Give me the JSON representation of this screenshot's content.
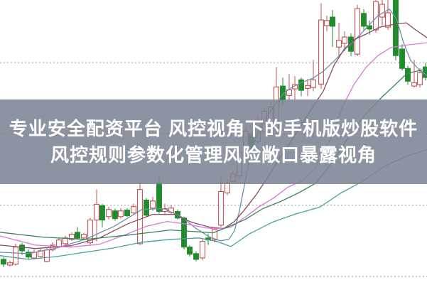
{
  "banner": {
    "line1": "专业安全配资平台 风控视角下的手机版炒股软件",
    "line2": "风控规则参数化管理风险敞口暴露视角",
    "bg_color": "rgba(124,132,147,0.87)",
    "text_color": "#ffffff"
  },
  "chart_data": {
    "type": "candlestick",
    "title": "",
    "legend": "none",
    "axes_visible": false,
    "background": "#ffffff",
    "value_scale": {
      "min": 0,
      "max": 100,
      "note": "normalized price scale; no axis tick labels are visible in the image"
    },
    "gridlines": {
      "orientation": "horizontal",
      "values": [
        78,
        53,
        28,
        3
      ],
      "style": "dotted",
      "color": "#9a9a9a"
    },
    "up_style": {
      "stroke": "#c4504f",
      "fill": "#ffffff",
      "meaning": "rising candle (hollow red)"
    },
    "down_style": {
      "stroke": "#208b2c",
      "fill": "#208b2c",
      "meaning": "falling candle (solid green)"
    },
    "candle_fields": [
      "x",
      "open",
      "close",
      "low",
      "high",
      "direction"
    ],
    "candles": [
      [
        5,
        9,
        7.3,
        6.3,
        9.8,
        "down"
      ],
      [
        14,
        7,
        7.8,
        6.5,
        8.5,
        "up"
      ],
      [
        22,
        7.3,
        13.3,
        6.8,
        14.5,
        "up"
      ],
      [
        31,
        14,
        12,
        10.5,
        14.8,
        "down"
      ],
      [
        40,
        11.5,
        9.8,
        8.8,
        12.5,
        "down"
      ],
      [
        48,
        9.5,
        11.5,
        9,
        12.5,
        "up"
      ],
      [
        57,
        10,
        12,
        9.5,
        12.8,
        "up"
      ],
      [
        66,
        8.3,
        12.3,
        8,
        13,
        "up"
      ],
      [
        74,
        12.3,
        14,
        11.8,
        15,
        "up"
      ],
      [
        83,
        13.5,
        15.8,
        13,
        16.5,
        "up"
      ],
      [
        92,
        14.5,
        16.5,
        14,
        17.3,
        "up"
      ],
      [
        101,
        16,
        17.8,
        15.5,
        18.5,
        "up"
      ],
      [
        109,
        18.5,
        16.5,
        16,
        20.3,
        "down"
      ],
      [
        118,
        16.5,
        17.8,
        16,
        18.3,
        "up"
      ],
      [
        127,
        14.8,
        22.8,
        14,
        23.5,
        "up"
      ],
      [
        136,
        22.8,
        28.3,
        15.3,
        33.5,
        "up"
      ],
      [
        144,
        27.8,
        22.8,
        20.3,
        28.5,
        "down"
      ],
      [
        153,
        24,
        26.5,
        23,
        27.5,
        "up"
      ],
      [
        162,
        26,
        23.3,
        22.5,
        26.8,
        "down"
      ],
      [
        170,
        24,
        26,
        23.3,
        27,
        "up"
      ],
      [
        179,
        26.3,
        24.3,
        23.8,
        27,
        "down"
      ],
      [
        188,
        25.3,
        27.5,
        24.8,
        28.5,
        "up"
      ],
      [
        197,
        14.5,
        33.5,
        14,
        35.8,
        "up"
      ],
      [
        206,
        29.8,
        24.5,
        23.8,
        30.5,
        "down"
      ],
      [
        215,
        27,
        29.5,
        26,
        31,
        "up"
      ],
      [
        224,
        35.8,
        25.8,
        25,
        37.8,
        "down"
      ],
      [
        232,
        25.8,
        26.8,
        24.5,
        28.5,
        "up"
      ],
      [
        241,
        25.5,
        27,
        24.8,
        28,
        "up"
      ],
      [
        250,
        25.8,
        23.5,
        23,
        26.5,
        "down"
      ],
      [
        259,
        23.5,
        13.3,
        12.5,
        24,
        "down"
      ],
      [
        267,
        13.3,
        10.8,
        10,
        14,
        "down"
      ],
      [
        276,
        11,
        9,
        8.3,
        11.8,
        "down"
      ],
      [
        285,
        9.5,
        15.3,
        8.8,
        16,
        "up"
      ],
      [
        293,
        16.5,
        15.8,
        14,
        18,
        "down"
      ],
      [
        302,
        15.8,
        19.5,
        15,
        20.3,
        "up"
      ],
      [
        311,
        21,
        32.8,
        20.3,
        38.5,
        "up"
      ],
      [
        320,
        32.3,
        35.8,
        31.5,
        37,
        "up"
      ],
      [
        328,
        36.3,
        39,
        35.5,
        40,
        "up"
      ],
      [
        337,
        38.3,
        46.5,
        37.5,
        48.5,
        "up"
      ],
      [
        346,
        45.3,
        54,
        44.5,
        55.5,
        "up"
      ],
      [
        354,
        52.8,
        47.8,
        46.5,
        54,
        "down"
      ],
      [
        363,
        50.3,
        57.8,
        49.5,
        59.5,
        "up"
      ],
      [
        372,
        54,
        61,
        53,
        62,
        "up"
      ],
      [
        381,
        56.5,
        62.5,
        55.5,
        64.5,
        "up"
      ],
      [
        389,
        55.3,
        69.5,
        52.8,
        76.5,
        "up"
      ],
      [
        398,
        69.8,
        64.8,
        63,
        72.8,
        "down"
      ],
      [
        407,
        66.5,
        68.5,
        64.5,
        74,
        "up"
      ],
      [
        415,
        68.8,
        70.3,
        65,
        73.3,
        "up"
      ],
      [
        424,
        72,
        68.3,
        66.3,
        72.8,
        "down"
      ],
      [
        433,
        69,
        70,
        66.3,
        72.3,
        "up"
      ],
      [
        441,
        69.3,
        72,
        68,
        79,
        "up"
      ],
      [
        452,
        70.5,
        93,
        68.8,
        98.8,
        "up"
      ],
      [
        460,
        91,
        92.8,
        89,
        94.5,
        "up"
      ],
      [
        468,
        94,
        90.8,
        83.5,
        96.5,
        "down"
      ],
      [
        477,
        83.5,
        85.8,
        79.5,
        92,
        "up"
      ],
      [
        485,
        84.8,
        87,
        82,
        89,
        "up"
      ],
      [
        494,
        87,
        82,
        80.3,
        88.3,
        "down"
      ],
      [
        503,
        81,
        97,
        80.3,
        98.3,
        "up"
      ],
      [
        512,
        95.3,
        90.8,
        89,
        96.8,
        "down"
      ],
      [
        520,
        91,
        89.8,
        87.8,
        92.8,
        "down"
      ],
      [
        529,
        89.5,
        99.5,
        88.5,
        100,
        "up"
      ],
      [
        538,
        94,
        98.5,
        91,
        100,
        "up"
      ],
      [
        546,
        90.5,
        95.5,
        89.5,
        100,
        "up"
      ],
      [
        557,
        100,
        80.5,
        78.8,
        100,
        "down"
      ],
      [
        566,
        82.8,
        76,
        75.3,
        84.5,
        "down"
      ],
      [
        574,
        76,
        71.5,
        70.3,
        77,
        "down"
      ],
      [
        583,
        69.8,
        71,
        69.3,
        79,
        "up"
      ],
      [
        591,
        70.3,
        74.5,
        69.3,
        76,
        "up"
      ],
      [
        599,
        76.5,
        72.8,
        71.8,
        78,
        "down"
      ]
    ],
    "moving_averages": [
      {
        "name": "ma-fast-steelblue",
        "color": "#6b90aa",
        "points": [
          [
            0,
            11.5
          ],
          [
            40,
            11
          ],
          [
            80,
            13
          ],
          [
            120,
            16
          ],
          [
            160,
            20.5
          ],
          [
            200,
            26.5
          ],
          [
            230,
            26.8
          ],
          [
            255,
            24
          ],
          [
            275,
            20
          ],
          [
            295,
            16.8
          ],
          [
            310,
            15.5
          ],
          [
            322,
            16
          ],
          [
            330,
            19
          ],
          [
            337,
            26
          ],
          [
            344,
            35
          ],
          [
            352,
            45
          ],
          [
            362,
            53
          ],
          [
            374,
            58.5
          ],
          [
            386,
            63
          ],
          [
            400,
            67.5
          ],
          [
            412,
            69.5
          ],
          [
            424,
            71
          ],
          [
            440,
            72.5
          ],
          [
            455,
            75
          ],
          [
            470,
            78.5
          ],
          [
            485,
            82.5
          ],
          [
            500,
            86
          ],
          [
            515,
            90
          ],
          [
            532,
            94.5
          ],
          [
            548,
            96.8
          ],
          [
            558,
            93.5
          ],
          [
            568,
            85
          ],
          [
            578,
            78.8
          ],
          [
            590,
            75.5
          ],
          [
            601,
            73.5
          ]
        ]
      },
      {
        "name": "ma-medium-maroon",
        "color": "#8e4a63",
        "points": [
          [
            0,
            14
          ],
          [
            50,
            12.8
          ],
          [
            100,
            13.8
          ],
          [
            140,
            16.5
          ],
          [
            180,
            21.5
          ],
          [
            215,
            24.8
          ],
          [
            245,
            24.8
          ],
          [
            270,
            22
          ],
          [
            295,
            20.3
          ],
          [
            315,
            19.8
          ],
          [
            330,
            22.3
          ],
          [
            343,
            26
          ],
          [
            360,
            31.5
          ],
          [
            377,
            37.8
          ],
          [
            395,
            45
          ],
          [
            415,
            52.5
          ],
          [
            435,
            60.5
          ],
          [
            455,
            68
          ],
          [
            470,
            77
          ],
          [
            485,
            83
          ],
          [
            500,
            86.3
          ],
          [
            515,
            88
          ],
          [
            535,
            90.5
          ],
          [
            555,
            91.5
          ],
          [
            572,
            92
          ],
          [
            585,
            89.5
          ],
          [
            601,
            86.8
          ]
        ]
      },
      {
        "name": "ma-slow-magenta",
        "color": "#d876d8",
        "points": [
          [
            0,
            17.2
          ],
          [
            50,
            14
          ],
          [
            100,
            13.3
          ],
          [
            140,
            14.3
          ],
          [
            175,
            17.5
          ],
          [
            205,
            20.5
          ],
          [
            235,
            22.3
          ],
          [
            265,
            21.3
          ],
          [
            290,
            20
          ],
          [
            310,
            19.8
          ],
          [
            325,
            20.3
          ],
          [
            345,
            23.8
          ],
          [
            365,
            27.5
          ],
          [
            385,
            30.5
          ],
          [
            405,
            34.3
          ],
          [
            425,
            36.5
          ],
          [
            445,
            41.3
          ],
          [
            465,
            51.3
          ],
          [
            482,
            62.5
          ],
          [
            498,
            70.3
          ],
          [
            515,
            76.3
          ],
          [
            532,
            80.5
          ],
          [
            550,
            83.3
          ],
          [
            575,
            84.3
          ],
          [
            601,
            85
          ]
        ]
      },
      {
        "name": "ma-slower-green",
        "color": "#37855a",
        "points": [
          [
            0,
            18.5
          ],
          [
            60,
            16.8
          ],
          [
            120,
            16
          ],
          [
            180,
            17.5
          ],
          [
            240,
            19.3
          ],
          [
            300,
            18.3
          ],
          [
            320,
            20.3
          ],
          [
            345,
            23
          ],
          [
            370,
            26.8
          ],
          [
            395,
            29.3
          ],
          [
            420,
            32.3
          ],
          [
            445,
            35.8
          ],
          [
            470,
            43.8
          ],
          [
            495,
            53.8
          ],
          [
            515,
            60
          ],
          [
            537,
            65.8
          ],
          [
            555,
            70
          ],
          [
            573,
            74.3
          ],
          [
            601,
            75.8
          ]
        ]
      },
      {
        "name": "ma-slowest-teal",
        "color": "#4a9f9f",
        "points": [
          [
            0,
            10.3
          ],
          [
            40,
            9
          ],
          [
            80,
            10
          ],
          [
            120,
            11.5
          ],
          [
            160,
            13
          ],
          [
            200,
            15
          ],
          [
            240,
            16
          ],
          [
            280,
            16.5
          ],
          [
            305,
            15.3
          ],
          [
            325,
            13.5
          ],
          [
            350,
            17.8
          ],
          [
            383,
            22
          ],
          [
            417,
            25
          ],
          [
            450,
            27.3
          ],
          [
            480,
            32.3
          ],
          [
            510,
            36.3
          ],
          [
            540,
            41.5
          ],
          [
            570,
            45
          ],
          [
            601,
            47.5
          ]
        ]
      }
    ]
  }
}
